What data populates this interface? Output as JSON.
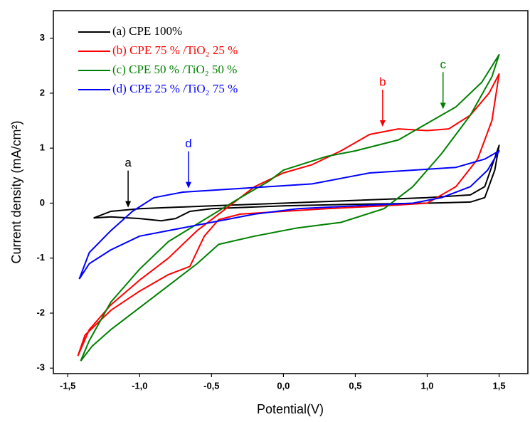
{
  "chart_data": {
    "type": "line",
    "xlabel": "Potential(V)",
    "ylabel": "Current density (mA/cm²)",
    "xlim": [
      -1.6,
      1.7
    ],
    "ylim": [
      -3.1,
      3.5
    ],
    "xticks": [
      {
        "value": -1.5,
        "label": "-1,5"
      },
      {
        "value": -1.0,
        "label": "-1,0"
      },
      {
        "value": -0.5,
        "label": "-0,5"
      },
      {
        "value": 0,
        "label": "0,0"
      },
      {
        "value": 0.5,
        "label": "0,5"
      },
      {
        "value": 1.0,
        "label": "1,0"
      },
      {
        "value": 1.5,
        "label": "1,5"
      }
    ],
    "yticks": [
      -3,
      -2,
      -1,
      0,
      1,
      2,
      3
    ],
    "grid": false,
    "legend": "upper left",
    "series": [
      {
        "name": "(a) CPE 100%",
        "color": "#000000",
        "x": [
          -1.32,
          -1.2,
          -1.0,
          -0.5,
          0.0,
          0.5,
          1.0,
          1.3,
          1.4,
          1.5,
          1.47,
          1.4,
          1.3,
          1.0,
          0.5,
          0.0,
          -0.5,
          -0.65,
          -0.75,
          -0.85,
          -1.0,
          -1.2,
          -1.32
        ],
        "values": [
          -0.27,
          -0.15,
          -0.1,
          -0.05,
          0.0,
          0.05,
          0.1,
          0.15,
          0.3,
          1.05,
          0.6,
          0.1,
          0.02,
          0.0,
          -0.02,
          -0.05,
          -0.1,
          -0.15,
          -0.28,
          -0.32,
          -0.28,
          -0.25,
          -0.27
        ]
      },
      {
        "name": "(b) CPE 75 % /TiO₂ 25 %",
        "color": "#ff0000",
        "x": [
          -1.43,
          -1.35,
          -1.2,
          -1.0,
          -0.8,
          -0.6,
          -0.4,
          -0.2,
          0.0,
          0.2,
          0.4,
          0.6,
          0.8,
          1.0,
          1.15,
          1.3,
          1.43,
          1.5,
          1.45,
          1.35,
          1.2,
          1.0,
          0.7,
          0.3,
          0.0,
          -0.3,
          -0.45,
          -0.55,
          -0.65,
          -0.8,
          -1.0,
          -1.2,
          -1.38,
          -1.43
        ],
        "values": [
          -2.78,
          -2.3,
          -1.85,
          -1.4,
          -1.0,
          -0.5,
          -0.1,
          0.3,
          0.55,
          0.7,
          0.95,
          1.25,
          1.35,
          1.32,
          1.35,
          1.6,
          2.0,
          2.35,
          1.5,
          0.8,
          0.3,
          0.0,
          -0.05,
          -0.1,
          -0.15,
          -0.2,
          -0.3,
          -0.6,
          -1.15,
          -1.3,
          -1.6,
          -1.95,
          -2.4,
          -2.78
        ]
      },
      {
        "name": "(c) CPE 50 % /TiO₂ 50 %",
        "color": "#008000",
        "x": [
          -1.41,
          -1.35,
          -1.2,
          -1.0,
          -0.8,
          -0.55,
          -0.3,
          -0.1,
          0.0,
          0.3,
          0.5,
          0.8,
          1.0,
          1.2,
          1.38,
          1.5,
          1.45,
          1.3,
          1.1,
          0.9,
          0.7,
          0.4,
          0.1,
          -0.2,
          -0.45,
          -0.6,
          -0.8,
          -1.0,
          -1.2,
          -1.33,
          -1.41
        ],
        "values": [
          -2.87,
          -2.5,
          -1.8,
          -1.2,
          -0.7,
          -0.3,
          0.1,
          0.4,
          0.6,
          0.85,
          0.95,
          1.15,
          1.45,
          1.75,
          2.2,
          2.7,
          2.3,
          1.6,
          0.9,
          0.3,
          -0.1,
          -0.35,
          -0.45,
          -0.6,
          -0.75,
          -1.1,
          -1.5,
          -1.9,
          -2.3,
          -2.6,
          -2.87
        ]
      },
      {
        "name": "(d) CPE 25 % /TiO₂ 75 %",
        "color": "#0000ff",
        "x": [
          -1.42,
          -1.35,
          -1.2,
          -1.05,
          -0.9,
          -0.7,
          -0.4,
          -0.1,
          0.2,
          0.4,
          0.6,
          0.9,
          1.2,
          1.4,
          1.5,
          1.42,
          1.3,
          1.1,
          0.9,
          0.5,
          0.1,
          -0.2,
          -0.4,
          -0.7,
          -1.0,
          -1.2,
          -1.35,
          -1.42
        ],
        "values": [
          -1.38,
          -0.9,
          -0.5,
          -0.15,
          0.1,
          0.2,
          0.25,
          0.3,
          0.35,
          0.45,
          0.55,
          0.6,
          0.65,
          0.8,
          0.95,
          0.6,
          0.3,
          0.1,
          0.0,
          -0.05,
          -0.1,
          -0.2,
          -0.3,
          -0.45,
          -0.6,
          -0.85,
          -1.1,
          -1.38
        ]
      }
    ],
    "annotations": [
      {
        "text": "a",
        "x": -1.08,
        "y": -0.08,
        "color": "#000000"
      },
      {
        "text": "b",
        "x": 0.69,
        "y": 1.39,
        "color": "#ff0000"
      },
      {
        "text": "c",
        "x": 1.11,
        "y": 1.71,
        "color": "#008000"
      },
      {
        "text": "d",
        "x": -0.66,
        "y": 0.27,
        "color": "#0000ff"
      }
    ]
  }
}
